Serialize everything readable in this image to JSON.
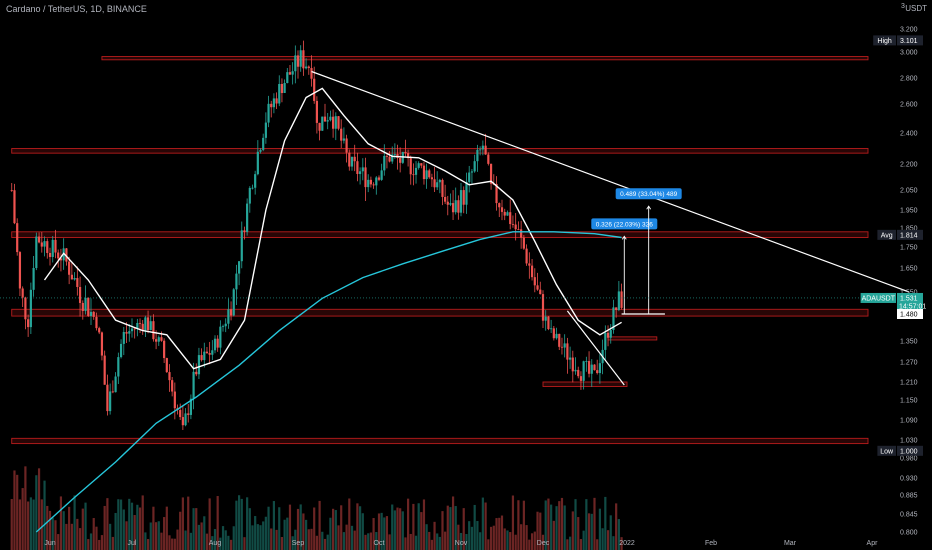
{
  "header": {
    "title": "Cardano / TetherUS, 1D, BINANCE",
    "currency": "USDT",
    "top_tick": "3"
  },
  "colors": {
    "background": "#000000",
    "bull": "#26a69a",
    "bear": "#ef5350",
    "ma_fast": "#ffffff",
    "ma_slow": "#26c6da",
    "zone": "#b71c1c",
    "trendline": "#ffffff",
    "label_blue": "#1e88e5",
    "last_price": "#26a69a"
  },
  "chart_data": {
    "type": "candlestick",
    "title": "Cardano / TetherUS, 1D, BINANCE",
    "y_axis": {
      "scale": "log",
      "range": [
        0.8,
        3.15
      ],
      "ticks": [
        "3.200",
        "3.000",
        "2.800",
        "2.600",
        "2.400",
        "2.200",
        "2.050",
        "1.950",
        "1.850",
        "1.750",
        "1.650",
        "1.550",
        "1.480",
        "1.350",
        "1.270",
        "1.210",
        "1.150",
        "1.090",
        "1.030",
        "0.980",
        "0.930",
        "0.885",
        "0.845",
        "0.800"
      ],
      "tick_values": [
        3.2,
        3.0,
        2.8,
        2.6,
        2.4,
        2.2,
        2.05,
        1.95,
        1.85,
        1.75,
        1.65,
        1.55,
        1.48,
        1.35,
        1.27,
        1.21,
        1.15,
        1.09,
        1.03,
        0.98,
        0.93,
        0.885,
        0.845,
        0.8
      ]
    },
    "x_axis": {
      "labels": [
        "Jun",
        "Jul",
        "Aug",
        "Sep",
        "Oct",
        "Nov",
        "Dec",
        "2022",
        "Feb",
        "Mar",
        "Apr"
      ],
      "dates": [
        "2021-06-01",
        "2021-07-01",
        "2021-08-01",
        "2021-09-01",
        "2021-10-01",
        "2021-11-01",
        "2021-12-01",
        "2022-01-01",
        "2022-02-01",
        "2022-03-01",
        "2022-04-01"
      ]
    },
    "price_path": [
      {
        "date": "2021-05-18",
        "close": 2.05
      },
      {
        "date": "2021-05-21",
        "close": 1.55
      },
      {
        "date": "2021-05-24",
        "close": 1.45
      },
      {
        "date": "2021-05-27",
        "close": 1.8
      },
      {
        "date": "2021-06-01",
        "close": 1.75
      },
      {
        "date": "2021-06-06",
        "close": 1.7
      },
      {
        "date": "2021-06-12",
        "close": 1.55
      },
      {
        "date": "2021-06-18",
        "close": 1.45
      },
      {
        "date": "2021-06-22",
        "close": 1.12
      },
      {
        "date": "2021-06-28",
        "close": 1.38
      },
      {
        "date": "2021-07-06",
        "close": 1.45
      },
      {
        "date": "2021-07-12",
        "close": 1.32
      },
      {
        "date": "2021-07-20",
        "close": 1.05
      },
      {
        "date": "2021-07-25",
        "close": 1.25
      },
      {
        "date": "2021-08-01",
        "close": 1.33
      },
      {
        "date": "2021-08-08",
        "close": 1.55
      },
      {
        "date": "2021-08-14",
        "close": 2.05
      },
      {
        "date": "2021-08-20",
        "close": 2.5
      },
      {
        "date": "2021-08-26",
        "close": 2.75
      },
      {
        "date": "2021-09-02",
        "close": 2.95
      },
      {
        "date": "2021-09-06",
        "close": 2.88
      },
      {
        "date": "2021-09-08",
        "close": 2.45
      },
      {
        "date": "2021-09-13",
        "close": 2.55
      },
      {
        "date": "2021-09-20",
        "close": 2.2
      },
      {
        "date": "2021-09-28",
        "close": 2.1
      },
      {
        "date": "2021-10-05",
        "close": 2.25
      },
      {
        "date": "2021-10-12",
        "close": 2.2
      },
      {
        "date": "2021-10-20",
        "close": 2.15
      },
      {
        "date": "2021-10-28",
        "close": 1.95
      },
      {
        "date": "2021-11-02",
        "close": 2.02
      },
      {
        "date": "2021-11-09",
        "close": 2.32
      },
      {
        "date": "2021-11-12",
        "close": 2.05
      },
      {
        "date": "2021-11-17",
        "close": 1.95
      },
      {
        "date": "2021-11-22",
        "close": 1.82
      },
      {
        "date": "2021-11-28",
        "close": 1.58
      },
      {
        "date": "2021-12-04",
        "close": 1.38
      },
      {
        "date": "2021-12-10",
        "close": 1.3
      },
      {
        "date": "2021-12-15",
        "close": 1.25
      },
      {
        "date": "2021-12-20",
        "close": 1.22
      },
      {
        "date": "2021-12-25",
        "close": 1.4
      },
      {
        "date": "2021-12-28",
        "close": 1.5
      },
      {
        "date": "2021-12-30",
        "close": 1.531
      }
    ],
    "series": [
      {
        "kind": "ma_fast",
        "values": [
          {
            "date": "2021-05-30",
            "v": 1.6
          },
          {
            "date": "2021-06-06",
            "v": 1.72
          },
          {
            "date": "2021-06-15",
            "v": 1.6
          },
          {
            "date": "2021-06-25",
            "v": 1.45
          },
          {
            "date": "2021-07-05",
            "v": 1.4
          },
          {
            "date": "2021-07-14",
            "v": 1.38
          },
          {
            "date": "2021-07-24",
            "v": 1.25
          },
          {
            "date": "2021-08-03",
            "v": 1.28
          },
          {
            "date": "2021-08-12",
            "v": 1.45
          },
          {
            "date": "2021-08-20",
            "v": 1.95
          },
          {
            "date": "2021-08-27",
            "v": 2.35
          },
          {
            "date": "2021-09-04",
            "v": 2.65
          },
          {
            "date": "2021-09-10",
            "v": 2.72
          },
          {
            "date": "2021-09-18",
            "v": 2.52
          },
          {
            "date": "2021-09-27",
            "v": 2.33
          },
          {
            "date": "2021-10-06",
            "v": 2.25
          },
          {
            "date": "2021-10-16",
            "v": 2.24
          },
          {
            "date": "2021-10-26",
            "v": 2.16
          },
          {
            "date": "2021-11-04",
            "v": 2.08
          },
          {
            "date": "2021-11-12",
            "v": 2.1
          },
          {
            "date": "2021-11-20",
            "v": 2.0
          },
          {
            "date": "2021-11-28",
            "v": 1.78
          },
          {
            "date": "2021-12-06",
            "v": 1.58
          },
          {
            "date": "2021-12-14",
            "v": 1.45
          },
          {
            "date": "2021-12-22",
            "v": 1.38
          },
          {
            "date": "2021-12-30",
            "v": 1.44
          }
        ]
      },
      {
        "kind": "ma_slow",
        "values": [
          {
            "date": "2021-05-27",
            "v": 0.8
          },
          {
            "date": "2021-06-10",
            "v": 0.88
          },
          {
            "date": "2021-06-25",
            "v": 0.97
          },
          {
            "date": "2021-07-10",
            "v": 1.08
          },
          {
            "date": "2021-07-25",
            "v": 1.16
          },
          {
            "date": "2021-08-10",
            "v": 1.26
          },
          {
            "date": "2021-08-25",
            "v": 1.4
          },
          {
            "date": "2021-09-10",
            "v": 1.53
          },
          {
            "date": "2021-09-25",
            "v": 1.61
          },
          {
            "date": "2021-10-10",
            "v": 1.67
          },
          {
            "date": "2021-10-25",
            "v": 1.73
          },
          {
            "date": "2021-11-08",
            "v": 1.79
          },
          {
            "date": "2021-11-20",
            "v": 1.83
          },
          {
            "date": "2021-12-05",
            "v": 1.83
          },
          {
            "date": "2021-12-20",
            "v": 1.82
          },
          {
            "date": "2021-12-30",
            "v": 1.8
          }
        ]
      }
    ],
    "zones": [
      {
        "low": 2.94,
        "high": 2.965,
        "from": "2021-06-20",
        "to": "2022-04-15"
      },
      {
        "low": 2.27,
        "high": 2.3,
        "from": "2021-05-18",
        "to": "2022-04-15"
      },
      {
        "low": 1.8,
        "high": 1.83,
        "from": "2021-05-18",
        "to": "2022-04-15"
      },
      {
        "low": 1.47,
        "high": 1.495,
        "from": "2021-05-18",
        "to": "2022-04-15"
      },
      {
        "low": 1.02,
        "high": 1.035,
        "from": "2021-05-18",
        "to": "2022-04-15"
      },
      {
        "low": 1.355,
        "high": 1.37,
        "from": "2021-12-25",
        "to": "2022-01-12"
      },
      {
        "low": 1.195,
        "high": 1.21,
        "from": "2021-12-01",
        "to": "2022-01-01"
      }
    ],
    "trendlines": [
      {
        "from": {
          "date": "2021-09-06",
          "price": 2.85
        },
        "to": {
          "date": "2022-04-15",
          "price": 1.55
        }
      },
      {
        "from": {
          "date": "2021-12-10",
          "price": 1.49
        },
        "to": {
          "date": "2021-12-31",
          "price": 1.2
        }
      },
      {
        "from": {
          "date": "2021-12-30",
          "price": 1.48
        },
        "to": {
          "date": "2022-01-15",
          "price": 1.48
        }
      }
    ],
    "measurements": [
      {
        "text": "0.326 (22.03%) 326",
        "date": "2021-12-31",
        "from": 1.48,
        "to": 1.806
      },
      {
        "text": "0.489 (33.04%) 489",
        "date": "2022-01-09",
        "from": 1.48,
        "to": 1.969
      }
    ],
    "price_labels": [
      {
        "tag": "High",
        "value": "3.101",
        "price": 3.101,
        "style": "dark"
      },
      {
        "tag": "Avg",
        "value": "1.814",
        "price": 1.814,
        "style": "dark"
      },
      {
        "tag": "ADAUSDT",
        "value": "1.531",
        "sub": "14:57:01",
        "price": 1.531,
        "style": "last"
      },
      {
        "tag": "",
        "value": "1.480",
        "price": 1.48,
        "style": "light"
      },
      {
        "tag": "Low",
        "value": "1.000",
        "price": 1.0,
        "style": "dark"
      }
    ]
  }
}
